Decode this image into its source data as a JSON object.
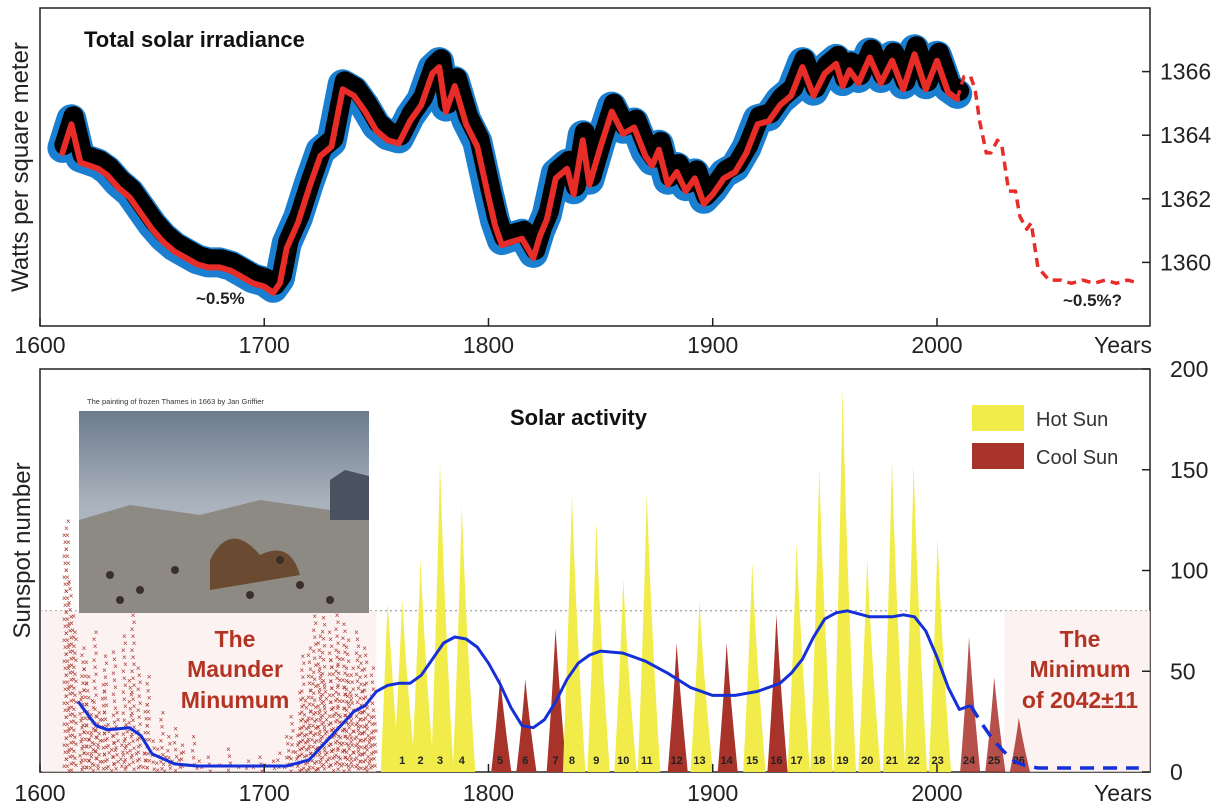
{
  "chart_data": [
    {
      "type": "line",
      "title": "Total solar irradiance",
      "ylabel": "Watts per square meter",
      "xlabel": "Years",
      "xlim": [
        1600,
        2095
      ],
      "ylim": [
        1358,
        1368
      ],
      "x_ticks": [
        "1600",
        "1700",
        "1800",
        "1900",
        "2000"
      ],
      "y_ticks": [
        "1360",
        "1362",
        "1364",
        "1366"
      ],
      "colors": {
        "reconstruction": "#e82c28",
        "band": "#1a7fd0",
        "core": "#000000",
        "forecast": "#e82c28"
      },
      "annotations": [
        "~0.5%",
        "~0.5%?"
      ],
      "series": [
        {
          "x": [
            1610,
            1614,
            1618,
            1622,
            1626,
            1630,
            1635,
            1640,
            1645,
            1650,
            1655,
            1660,
            1665,
            1670,
            1675,
            1680,
            1685,
            1690,
            1695,
            1700,
            1704,
            1707,
            1710,
            1715,
            1720,
            1725,
            1730,
            1735,
            1740,
            1745,
            1750,
            1755,
            1760,
            1765,
            1770,
            1775,
            1778,
            1781,
            1785,
            1790,
            1795,
            1800,
            1803,
            1806,
            1810,
            1815,
            1820,
            1823,
            1826,
            1830,
            1835,
            1838,
            1842,
            1845,
            1850,
            1855,
            1860,
            1865,
            1870,
            1873,
            1876,
            1880,
            1884,
            1888,
            1892,
            1896,
            1900,
            1905,
            1910,
            1915,
            1920,
            1925,
            1930,
            1935,
            1940,
            1945,
            1950,
            1955,
            1958,
            1961,
            1965,
            1970,
            1975,
            1980,
            1985,
            1990,
            1995,
            2000,
            2005,
            2009
          ],
          "values": [
            1363.6,
            1364.5,
            1363.3,
            1363.2,
            1363.1,
            1362.9,
            1362.5,
            1362.2,
            1361.7,
            1361.2,
            1360.8,
            1360.5,
            1360.3,
            1360.1,
            1360.0,
            1360.0,
            1359.9,
            1359.7,
            1359.5,
            1359.4,
            1359.2,
            1359.5,
            1360.6,
            1361.4,
            1362.5,
            1363.5,
            1363.8,
            1365.6,
            1365.4,
            1364.9,
            1364.3,
            1364.0,
            1363.9,
            1364.6,
            1365.1,
            1366.1,
            1366.3,
            1364.9,
            1365.7,
            1364.5,
            1363.8,
            1362.2,
            1361.3,
            1360.7,
            1360.8,
            1360.9,
            1360.3,
            1361.0,
            1361.5,
            1362.8,
            1363.1,
            1362.3,
            1364.0,
            1362.6,
            1363.8,
            1364.9,
            1364.2,
            1364.4,
            1363.5,
            1363.2,
            1363.7,
            1362.6,
            1363.0,
            1362.4,
            1362.8,
            1362.0,
            1362.3,
            1362.8,
            1363.0,
            1363.6,
            1364.5,
            1364.6,
            1365.1,
            1365.4,
            1366.3,
            1365.4,
            1366.1,
            1366.4,
            1365.7,
            1366.2,
            1365.8,
            1366.6,
            1365.8,
            1366.5,
            1365.6,
            1366.7,
            1365.6,
            1366.5,
            1365.5,
            1365.3
          ]
        },
        {
          "name": "forecast",
          "x": [
            2009,
            2012,
            2015,
            2017,
            2019,
            2022,
            2024,
            2027,
            2029,
            2032,
            2035,
            2037,
            2040,
            2042,
            2045,
            2050,
            2055,
            2060,
            2065,
            2070,
            2075,
            2080,
            2085,
            2090
          ],
          "values": [
            1365.3,
            1366,
            1366,
            1365.6,
            1364.6,
            1363.6,
            1363.6,
            1364,
            1363.8,
            1362.4,
            1362.4,
            1361.6,
            1361.2,
            1361.4,
            1360,
            1359.6,
            1359.6,
            1359.5,
            1359.6,
            1359.5,
            1359.6,
            1359.5,
            1359.6,
            1359.5
          ]
        }
      ]
    },
    {
      "type": "area",
      "title": "Solar activity",
      "ylabel": "Sunspot number",
      "xlabel": "Years",
      "xlim": [
        1600,
        2095
      ],
      "ylim": [
        0,
        200
      ],
      "x_ticks": [
        "1600",
        "1700",
        "1800",
        "1900",
        "2000"
      ],
      "y_ticks": [
        "0",
        "50",
        "100",
        "150",
        "200"
      ],
      "reference_line": 80,
      "legend": {
        "position": "top-right",
        "items": [
          {
            "label": "Hot Sun",
            "color": "#f2ec4a"
          },
          {
            "label": "Cool Sun",
            "color": "#a8332a"
          }
        ]
      },
      "inset_caption": "The painting of frozen Thames in 1663 by Jan Griffier",
      "annotations": {
        "maunder": [
          "The",
          "Maunder",
          "Minumum"
        ],
        "minimum": [
          "The",
          "Minimum",
          "of 2042±11"
        ]
      },
      "cycles": [
        {
          "n": "1",
          "t": 1761.5,
          "peak": 86,
          "hot": true
        },
        {
          "n": "2",
          "t": 1769.7,
          "peak": 106,
          "hot": true
        },
        {
          "n": "3",
          "t": 1778.4,
          "peak": 154,
          "hot": true
        },
        {
          "n": "4",
          "t": 1788.1,
          "peak": 132,
          "hot": true
        },
        {
          "n": "5",
          "t": 1805.2,
          "peak": 47,
          "hot": false
        },
        {
          "n": "6",
          "t": 1816.4,
          "peak": 46,
          "hot": false
        },
        {
          "n": "7",
          "t": 1829.9,
          "peak": 71,
          "hot": false
        },
        {
          "n": "8",
          "t": 1837.2,
          "peak": 138,
          "hot": true
        },
        {
          "n": "9",
          "t": 1848.1,
          "peak": 124,
          "hot": true
        },
        {
          "n": "10",
          "t": 1860.1,
          "peak": 96,
          "hot": true
        },
        {
          "n": "11",
          "t": 1870.6,
          "peak": 139,
          "hot": true
        },
        {
          "n": "12",
          "t": 1883.9,
          "peak": 64,
          "hot": false
        },
        {
          "n": "13",
          "t": 1894.1,
          "peak": 85,
          "hot": true
        },
        {
          "n": "14",
          "t": 1906.2,
          "peak": 64,
          "hot": false
        },
        {
          "n": "15",
          "t": 1917.6,
          "peak": 104,
          "hot": true
        },
        {
          "n": "16",
          "t": 1928.4,
          "peak": 78,
          "hot": false
        },
        {
          "n": "17",
          "t": 1937.4,
          "peak": 114,
          "hot": true
        },
        {
          "n": "18",
          "t": 1947.5,
          "peak": 151,
          "hot": true
        },
        {
          "n": "19",
          "t": 1957.9,
          "peak": 190,
          "hot": true
        },
        {
          "n": "20",
          "t": 1968.9,
          "peak": 106,
          "hot": true
        },
        {
          "n": "21",
          "t": 1979.9,
          "peak": 155,
          "hot": true
        },
        {
          "n": "22",
          "t": 1989.6,
          "peak": 153,
          "hot": true
        },
        {
          "n": "23",
          "t": 2000.3,
          "peak": 116,
          "hot": true
        },
        {
          "n": "24",
          "t": 2014.3,
          "peak": 67,
          "hot": false
        },
        {
          "n": "25",
          "t": 2025.5,
          "peak": 47,
          "hot": false
        },
        {
          "n": "26",
          "t": 2036.5,
          "peak": 27,
          "hot": false
        }
      ],
      "pre_1750_peak": {
        "x": 1755,
        "value": 84
      },
      "smoothed": {
        "x": [
          1617,
          1625,
          1630,
          1640,
          1645,
          1650,
          1660,
          1670,
          1680,
          1690,
          1700,
          1710,
          1720,
          1730,
          1740,
          1745,
          1750,
          1755,
          1760,
          1765,
          1770,
          1775,
          1780,
          1785,
          1790,
          1795,
          1800,
          1805,
          1810,
          1815,
          1820,
          1825,
          1830,
          1835,
          1840,
          1845,
          1850,
          1860,
          1870,
          1880,
          1890,
          1900,
          1910,
          1920,
          1930,
          1935,
          1940,
          1945,
          1950,
          1955,
          1960,
          1970,
          1980,
          1985,
          1990,
          1995,
          2000,
          2005,
          2010,
          2015
        ],
        "values": [
          35,
          23,
          21,
          22,
          18,
          9,
          4,
          3,
          3,
          3,
          3,
          3,
          6,
          18,
          30,
          33,
          40,
          43,
          44,
          44,
          48,
          56,
          64,
          67,
          66,
          62,
          54,
          44,
          32,
          23,
          22,
          26,
          35,
          46,
          54,
          58,
          60,
          59,
          55,
          49,
          42,
          38,
          38,
          40,
          44,
          49,
          56,
          67,
          76,
          79,
          80,
          77,
          77,
          78,
          77,
          70,
          57,
          42,
          31,
          33
        ]
      },
      "forecast_smoothed": {
        "x": [
          2015,
          2020,
          2025,
          2030,
          2035,
          2040,
          2045,
          2050,
          2060,
          2070,
          2080,
          2090
        ],
        "values": [
          33,
          24,
          16,
          10,
          5,
          3,
          2,
          2,
          2,
          2,
          2,
          2
        ]
      },
      "maunder_marks": {
        "x": [
          1611,
          1612,
          1613,
          1614,
          1615,
          1618,
          1619,
          1620,
          1621,
          1622,
          1623,
          1624,
          1625,
          1626,
          1628,
          1629,
          1630,
          1632,
          1633,
          1634,
          1636,
          1637,
          1638,
          1640,
          1641,
          1643,
          1644,
          1646,
          1647,
          1648,
          1650,
          1652,
          1654,
          1655,
          1657,
          1658,
          1660,
          1662,
          1663,
          1665,
          1668,
          1670,
          1672,
          1675,
          1680,
          1684,
          1688,
          1692,
          1695,
          1698,
          1700,
          1704,
          1706,
          1708,
          1710,
          1711,
          1712,
          1714,
          1715,
          1716,
          1717,
          1718,
          1719,
          1720,
          1721,
          1722,
          1723,
          1724,
          1725,
          1726,
          1727,
          1728,
          1729,
          1730,
          1731,
          1732,
          1733,
          1734,
          1735,
          1736,
          1737,
          1738,
          1739,
          1740,
          1741,
          1742,
          1743,
          1744,
          1745,
          1746,
          1747,
          1748,
          1749
        ],
        "values": [
          118,
          125,
          95,
          78,
          70,
          40,
          62,
          55,
          48,
          20,
          36,
          70,
          28,
          30,
          44,
          58,
          24,
          22,
          60,
          30,
          14,
          68,
          24,
          46,
          82,
          20,
          52,
          10,
          34,
          48,
          16,
          12,
          30,
          8,
          18,
          6,
          22,
          10,
          14,
          4,
          18,
          6,
          3,
          8,
          4,
          12,
          3,
          6,
          3,
          8,
          4,
          6,
          10,
          3,
          18,
          8,
          28,
          14,
          22,
          40,
          58,
          36,
          26,
          62,
          48,
          78,
          30,
          68,
          52,
          84,
          44,
          24,
          70,
          56,
          36,
          82,
          60,
          28,
          74,
          46,
          66,
          40,
          52,
          24,
          70,
          30,
          58,
          44,
          62,
          36,
          20,
          52,
          28
        ]
      }
    }
  ]
}
